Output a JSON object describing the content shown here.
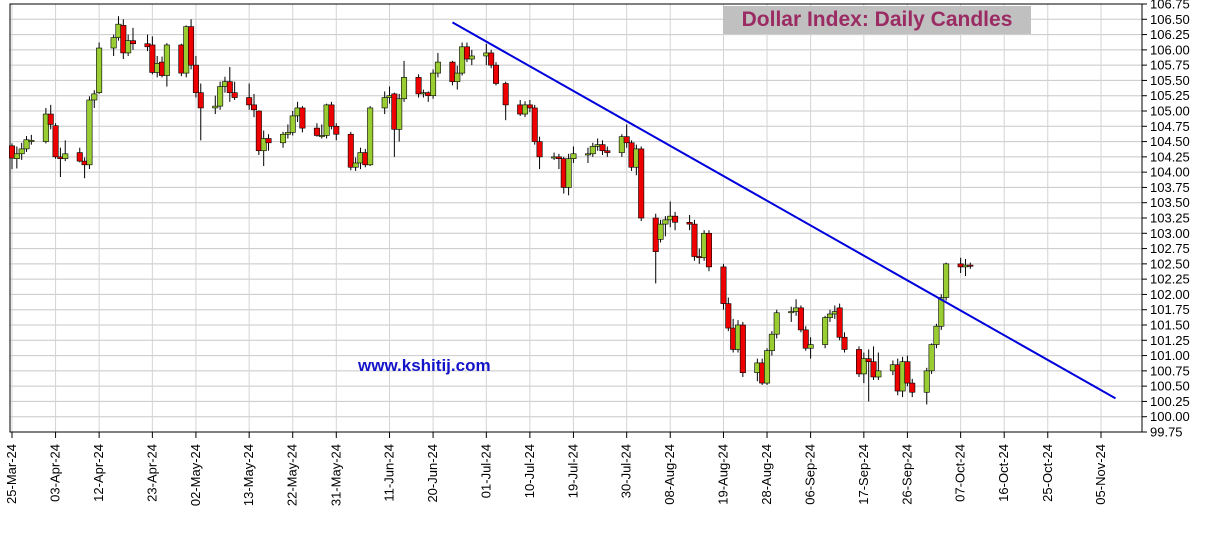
{
  "chart_data": {
    "type": "candlestick",
    "title": "Dollar Index: Daily Candles",
    "watermark": "www.kshitij.com",
    "xlabel": "",
    "ylabel": "",
    "ylim": [
      99.75,
      106.75
    ],
    "y_ticks": [
      "106.75",
      "106.50",
      "106.25",
      "106.00",
      "105.75",
      "105.50",
      "105.25",
      "105.00",
      "104.75",
      "104.50",
      "104.25",
      "104.00",
      "103.75",
      "103.50",
      "103.25",
      "103.00",
      "102.75",
      "102.50",
      "102.25",
      "102.00",
      "101.75",
      "101.50",
      "101.25",
      "101.00",
      "100.75",
      "100.50",
      "100.25",
      "100.00",
      "99.75"
    ],
    "x_ticks": [
      "25-Mar-24",
      "03-Apr-24",
      "12-Apr-24",
      "23-Apr-24",
      "02-May-24",
      "13-May-24",
      "22-May-24",
      "31-May-24",
      "11-Jun-24",
      "20-Jun-24",
      "01-Jul-24",
      "10-Jul-24",
      "19-Jul-24",
      "30-Jul-24",
      "08-Aug-24",
      "19-Aug-24",
      "28-Aug-24",
      "06-Sep-24",
      "17-Sep-24",
      "26-Sep-24",
      "07-Oct-24",
      "16-Oct-24",
      "25-Oct-24",
      "05-Nov-24"
    ],
    "up_color": "#9acd32",
    "down_color": "#ee0000",
    "trendline_color": "#0000dd",
    "trendline": {
      "start": [
        "2024-06-24",
        106.45
      ],
      "end": [
        "2024-11-08",
        100.3
      ]
    },
    "grid": true,
    "candles": [
      {
        "date": "2024-03-25",
        "o": 104.43,
        "h": 104.47,
        "l": 104.05,
        "c": 104.23
      },
      {
        "date": "2024-03-26",
        "o": 104.22,
        "h": 104.42,
        "l": 104.06,
        "c": 104.3
      },
      {
        "date": "2024-03-27",
        "o": 104.3,
        "h": 104.48,
        "l": 104.2,
        "c": 104.38
      },
      {
        "date": "2024-03-28",
        "o": 104.38,
        "h": 104.59,
        "l": 104.33,
        "c": 104.53
      },
      {
        "date": "2024-03-29",
        "o": 104.5,
        "h": 104.61,
        "l": 104.45,
        "c": 104.52
      },
      {
        "date": "2024-04-01",
        "o": 104.5,
        "h": 105.05,
        "l": 104.47,
        "c": 104.95
      },
      {
        "date": "2024-04-02",
        "o": 104.95,
        "h": 105.1,
        "l": 104.7,
        "c": 104.78
      },
      {
        "date": "2024-04-03",
        "o": 104.76,
        "h": 104.8,
        "l": 104.22,
        "c": 104.25
      },
      {
        "date": "2024-04-04",
        "o": 104.25,
        "h": 104.4,
        "l": 103.92,
        "c": 104.22
      },
      {
        "date": "2024-04-05",
        "o": 104.22,
        "h": 104.52,
        "l": 104.18,
        "c": 104.3
      },
      {
        "date": "2024-04-08",
        "o": 104.32,
        "h": 104.4,
        "l": 104.16,
        "c": 104.18
      },
      {
        "date": "2024-04-09",
        "o": 104.18,
        "h": 104.24,
        "l": 103.9,
        "c": 104.12
      },
      {
        "date": "2024-04-10",
        "o": 104.12,
        "h": 105.24,
        "l": 104.05,
        "c": 105.18
      },
      {
        "date": "2024-04-11",
        "o": 105.18,
        "h": 105.34,
        "l": 105.05,
        "c": 105.28
      },
      {
        "date": "2024-04-12",
        "o": 105.3,
        "h": 106.12,
        "l": 105.28,
        "c": 106.03
      },
      {
        "date": "2024-04-15",
        "o": 106.03,
        "h": 106.25,
        "l": 105.9,
        "c": 106.2
      },
      {
        "date": "2024-04-16",
        "o": 106.2,
        "h": 106.55,
        "l": 106.15,
        "c": 106.42
      },
      {
        "date": "2024-04-17",
        "o": 106.4,
        "h": 106.5,
        "l": 105.85,
        "c": 105.95
      },
      {
        "date": "2024-04-18",
        "o": 105.95,
        "h": 106.25,
        "l": 105.9,
        "c": 106.15
      },
      {
        "date": "2024-04-19",
        "o": 106.15,
        "h": 106.36,
        "l": 106.0,
        "c": 106.1
      },
      {
        "date": "2024-04-22",
        "o": 106.1,
        "h": 106.25,
        "l": 105.98,
        "c": 106.05
      },
      {
        "date": "2024-04-23",
        "o": 106.08,
        "h": 106.22,
        "l": 105.6,
        "c": 105.63
      },
      {
        "date": "2024-04-24",
        "o": 105.63,
        "h": 105.9,
        "l": 105.55,
        "c": 105.78
      },
      {
        "date": "2024-04-25",
        "o": 105.8,
        "h": 105.89,
        "l": 105.55,
        "c": 105.58
      },
      {
        "date": "2024-04-26",
        "o": 105.58,
        "h": 106.11,
        "l": 105.4,
        "c": 106.08
      },
      {
        "date": "2024-04-29",
        "o": 106.08,
        "h": 106.1,
        "l": 105.57,
        "c": 105.62
      },
      {
        "date": "2024-04-30",
        "o": 105.62,
        "h": 106.4,
        "l": 105.55,
        "c": 106.38
      },
      {
        "date": "2024-05-01",
        "o": 106.38,
        "h": 106.5,
        "l": 105.68,
        "c": 105.75
      },
      {
        "date": "2024-05-02",
        "o": 105.75,
        "h": 105.9,
        "l": 105.22,
        "c": 105.3
      },
      {
        "date": "2024-05-03",
        "o": 105.3,
        "h": 105.45,
        "l": 104.52,
        "c": 105.05
      },
      {
        "date": "2024-05-06",
        "o": 105.05,
        "h": 105.25,
        "l": 104.95,
        "c": 105.08
      },
      {
        "date": "2024-05-07",
        "o": 105.08,
        "h": 105.48,
        "l": 105.02,
        "c": 105.4
      },
      {
        "date": "2024-05-08",
        "o": 105.4,
        "h": 105.56,
        "l": 105.3,
        "c": 105.48
      },
      {
        "date": "2024-05-09",
        "o": 105.48,
        "h": 105.72,
        "l": 105.15,
        "c": 105.3
      },
      {
        "date": "2024-05-10",
        "o": 105.3,
        "h": 105.48,
        "l": 105.18,
        "c": 105.22
      },
      {
        "date": "2024-05-13",
        "o": 105.22,
        "h": 105.45,
        "l": 105.02,
        "c": 105.1
      },
      {
        "date": "2024-05-14",
        "o": 105.1,
        "h": 105.28,
        "l": 104.9,
        "c": 105.02
      },
      {
        "date": "2024-05-15",
        "o": 105.0,
        "h": 105.01,
        "l": 104.28,
        "c": 104.35
      },
      {
        "date": "2024-05-16",
        "o": 104.35,
        "h": 104.68,
        "l": 104.1,
        "c": 104.55
      },
      {
        "date": "2024-05-17",
        "o": 104.55,
        "h": 104.62,
        "l": 104.35,
        "c": 104.48
      },
      {
        "date": "2024-05-20",
        "o": 104.48,
        "h": 104.66,
        "l": 104.4,
        "c": 104.62
      },
      {
        "date": "2024-05-21",
        "o": 104.62,
        "h": 104.78,
        "l": 104.55,
        "c": 104.65
      },
      {
        "date": "2024-05-22",
        "o": 104.65,
        "h": 105.0,
        "l": 104.6,
        "c": 104.92
      },
      {
        "date": "2024-05-23",
        "o": 104.92,
        "h": 105.15,
        "l": 104.82,
        "c": 105.05
      },
      {
        "date": "2024-05-24",
        "o": 105.05,
        "h": 105.08,
        "l": 104.65,
        "c": 104.72
      },
      {
        "date": "2024-05-27",
        "o": 104.72,
        "h": 104.8,
        "l": 104.58,
        "c": 104.6
      },
      {
        "date": "2024-05-28",
        "o": 104.6,
        "h": 104.78,
        "l": 104.55,
        "c": 104.6
      },
      {
        "date": "2024-05-29",
        "o": 104.6,
        "h": 105.12,
        "l": 104.55,
        "c": 105.1
      },
      {
        "date": "2024-05-30",
        "o": 105.1,
        "h": 105.15,
        "l": 104.7,
        "c": 104.75
      },
      {
        "date": "2024-05-31",
        "o": 104.75,
        "h": 104.8,
        "l": 104.52,
        "c": 104.62
      },
      {
        "date": "2024-06-03",
        "o": 104.62,
        "h": 104.66,
        "l": 104.03,
        "c": 104.08
      },
      {
        "date": "2024-06-04",
        "o": 104.08,
        "h": 104.24,
        "l": 104.02,
        "c": 104.15
      },
      {
        "date": "2024-06-05",
        "o": 104.15,
        "h": 104.4,
        "l": 104.05,
        "c": 104.32
      },
      {
        "date": "2024-06-06",
        "o": 104.32,
        "h": 104.38,
        "l": 104.08,
        "c": 104.12
      },
      {
        "date": "2024-06-07",
        "o": 104.12,
        "h": 105.08,
        "l": 104.1,
        "c": 105.05
      },
      {
        "date": "2024-06-10",
        "o": 105.05,
        "h": 105.32,
        "l": 104.95,
        "c": 105.22
      },
      {
        "date": "2024-06-11",
        "o": 105.22,
        "h": 105.4,
        "l": 105.12,
        "c": 105.25
      },
      {
        "date": "2024-06-12",
        "o": 105.28,
        "h": 105.3,
        "l": 104.25,
        "c": 104.7
      },
      {
        "date": "2024-06-13",
        "o": 104.7,
        "h": 105.28,
        "l": 104.5,
        "c": 105.2
      },
      {
        "date": "2024-06-14",
        "o": 105.2,
        "h": 105.82,
        "l": 105.15,
        "c": 105.55
      },
      {
        "date": "2024-06-17",
        "o": 105.55,
        "h": 105.6,
        "l": 105.22,
        "c": 105.28
      },
      {
        "date": "2024-06-18",
        "o": 105.28,
        "h": 105.35,
        "l": 105.22,
        "c": 105.3
      },
      {
        "date": "2024-06-19",
        "o": 105.3,
        "h": 105.32,
        "l": 105.15,
        "c": 105.25
      },
      {
        "date": "2024-06-20",
        "o": 105.25,
        "h": 105.68,
        "l": 105.2,
        "c": 105.62
      },
      {
        "date": "2024-06-21",
        "o": 105.62,
        "h": 105.95,
        "l": 105.55,
        "c": 105.8
      },
      {
        "date": "2024-06-24",
        "o": 105.8,
        "h": 105.82,
        "l": 105.42,
        "c": 105.48
      },
      {
        "date": "2024-06-25",
        "o": 105.48,
        "h": 105.74,
        "l": 105.35,
        "c": 105.62
      },
      {
        "date": "2024-06-26",
        "o": 105.62,
        "h": 106.12,
        "l": 105.58,
        "c": 106.05
      },
      {
        "date": "2024-06-27",
        "o": 106.05,
        "h": 106.12,
        "l": 105.8,
        "c": 105.85
      },
      {
        "date": "2024-06-28",
        "o": 105.85,
        "h": 106.0,
        "l": 105.75,
        "c": 105.9
      },
      {
        "date": "2024-07-01",
        "o": 105.9,
        "h": 106.1,
        "l": 105.75,
        "c": 105.95
      },
      {
        "date": "2024-07-02",
        "o": 105.95,
        "h": 106.0,
        "l": 105.7,
        "c": 105.75
      },
      {
        "date": "2024-07-03",
        "o": 105.75,
        "h": 105.8,
        "l": 105.42,
        "c": 105.45
      },
      {
        "date": "2024-07-05",
        "o": 105.45,
        "h": 105.48,
        "l": 104.85,
        "c": 105.1
      },
      {
        "date": "2024-07-08",
        "o": 105.1,
        "h": 105.18,
        "l": 104.92,
        "c": 104.95
      },
      {
        "date": "2024-07-09",
        "o": 104.95,
        "h": 105.16,
        "l": 104.9,
        "c": 105.1
      },
      {
        "date": "2024-07-10",
        "o": 105.1,
        "h": 105.18,
        "l": 104.98,
        "c": 105.05
      },
      {
        "date": "2024-07-11",
        "o": 105.05,
        "h": 105.1,
        "l": 104.45,
        "c": 104.5
      },
      {
        "date": "2024-07-12",
        "o": 104.5,
        "h": 104.58,
        "l": 104.05,
        "c": 104.25
      },
      {
        "date": "2024-07-15",
        "o": 104.25,
        "h": 104.32,
        "l": 104.2,
        "c": 104.25
      },
      {
        "date": "2024-07-16",
        "o": 104.25,
        "h": 104.3,
        "l": 104.05,
        "c": 104.22
      },
      {
        "date": "2024-07-17",
        "o": 104.22,
        "h": 104.25,
        "l": 103.65,
        "c": 103.75
      },
      {
        "date": "2024-07-18",
        "o": 103.75,
        "h": 104.3,
        "l": 103.62,
        "c": 104.22
      },
      {
        "date": "2024-07-19",
        "o": 104.22,
        "h": 104.42,
        "l": 104.15,
        "c": 104.3
      },
      {
        "date": "2024-07-22",
        "o": 104.3,
        "h": 104.4,
        "l": 104.15,
        "c": 104.3
      },
      {
        "date": "2024-07-23",
        "o": 104.3,
        "h": 104.48,
        "l": 104.25,
        "c": 104.42
      },
      {
        "date": "2024-07-24",
        "o": 104.42,
        "h": 104.55,
        "l": 104.35,
        "c": 104.45
      },
      {
        "date": "2024-07-25",
        "o": 104.45,
        "h": 104.52,
        "l": 104.28,
        "c": 104.35
      },
      {
        "date": "2024-07-26",
        "o": 104.35,
        "h": 104.42,
        "l": 104.25,
        "c": 104.32
      },
      {
        "date": "2024-07-29",
        "o": 104.32,
        "h": 104.62,
        "l": 104.25,
        "c": 104.58
      },
      {
        "date": "2024-07-30",
        "o": 104.58,
        "h": 104.78,
        "l": 104.4,
        "c": 104.48
      },
      {
        "date": "2024-07-31",
        "o": 104.48,
        "h": 104.52,
        "l": 104.02,
        "c": 104.08
      },
      {
        "date": "2024-08-01",
        "o": 104.08,
        "h": 104.45,
        "l": 103.95,
        "c": 104.38
      },
      {
        "date": "2024-08-02",
        "o": 104.38,
        "h": 104.42,
        "l": 103.2,
        "c": 103.25
      },
      {
        "date": "2024-08-05",
        "o": 103.25,
        "h": 103.32,
        "l": 102.18,
        "c": 102.7
      },
      {
        "date": "2024-08-06",
        "o": 102.9,
        "h": 103.22,
        "l": 102.85,
        "c": 103.15
      },
      {
        "date": "2024-08-07",
        "o": 103.15,
        "h": 103.28,
        "l": 102.95,
        "c": 103.22
      },
      {
        "date": "2024-08-08",
        "o": 103.22,
        "h": 103.52,
        "l": 103.1,
        "c": 103.28
      },
      {
        "date": "2024-08-09",
        "o": 103.28,
        "h": 103.35,
        "l": 103.05,
        "c": 103.18
      },
      {
        "date": "2024-08-12",
        "o": 103.18,
        "h": 103.3,
        "l": 103.05,
        "c": 103.15
      },
      {
        "date": "2024-08-13",
        "o": 103.15,
        "h": 103.22,
        "l": 102.55,
        "c": 102.62
      },
      {
        "date": "2024-08-14",
        "o": 102.62,
        "h": 102.75,
        "l": 102.5,
        "c": 102.6
      },
      {
        "date": "2024-08-15",
        "o": 102.6,
        "h": 103.05,
        "l": 102.55,
        "c": 103.0
      },
      {
        "date": "2024-08-16",
        "o": 103.0,
        "h": 103.05,
        "l": 102.38,
        "c": 102.45
      },
      {
        "date": "2024-08-19",
        "o": 102.45,
        "h": 102.5,
        "l": 101.75,
        "c": 101.85
      },
      {
        "date": "2024-08-20",
        "o": 101.85,
        "h": 101.95,
        "l": 101.4,
        "c": 101.45
      },
      {
        "date": "2024-08-21",
        "o": 101.45,
        "h": 101.6,
        "l": 101.05,
        "c": 101.1
      },
      {
        "date": "2024-08-22",
        "o": 101.1,
        "h": 101.58,
        "l": 101.05,
        "c": 101.5
      },
      {
        "date": "2024-08-23",
        "o": 101.5,
        "h": 101.55,
        "l": 100.65,
        "c": 100.72
      },
      {
        "date": "2024-08-26",
        "o": 100.72,
        "h": 100.95,
        "l": 100.58,
        "c": 100.88
      },
      {
        "date": "2024-08-27",
        "o": 100.88,
        "h": 100.95,
        "l": 100.52,
        "c": 100.55
      },
      {
        "date": "2024-08-28",
        "o": 100.55,
        "h": 101.12,
        "l": 100.52,
        "c": 101.08
      },
      {
        "date": "2024-08-29",
        "o": 101.08,
        "h": 101.4,
        "l": 101.0,
        "c": 101.35
      },
      {
        "date": "2024-08-30",
        "o": 101.35,
        "h": 101.75,
        "l": 101.28,
        "c": 101.7
      },
      {
        "date": "2024-09-02",
        "o": 101.7,
        "h": 101.8,
        "l": 101.55,
        "c": 101.72
      },
      {
        "date": "2024-09-03",
        "o": 101.72,
        "h": 101.92,
        "l": 101.65,
        "c": 101.78
      },
      {
        "date": "2024-09-04",
        "o": 101.78,
        "h": 101.82,
        "l": 101.38,
        "c": 101.42
      },
      {
        "date": "2024-09-05",
        "o": 101.42,
        "h": 101.48,
        "l": 101.08,
        "c": 101.12
      },
      {
        "date": "2024-09-06",
        "o": 101.12,
        "h": 101.3,
        "l": 100.95,
        "c": 101.18
      },
      {
        "date": "2024-09-09",
        "o": 101.18,
        "h": 101.65,
        "l": 101.12,
        "c": 101.62
      },
      {
        "date": "2024-09-10",
        "o": 101.62,
        "h": 101.75,
        "l": 101.55,
        "c": 101.68
      },
      {
        "date": "2024-09-11",
        "o": 101.68,
        "h": 101.82,
        "l": 101.6,
        "c": 101.72
      },
      {
        "date": "2024-09-12",
        "o": 101.78,
        "h": 101.85,
        "l": 101.25,
        "c": 101.3
      },
      {
        "date": "2024-09-13",
        "o": 101.3,
        "h": 101.38,
        "l": 101.05,
        "c": 101.1
      },
      {
        "date": "2024-09-16",
        "o": 101.1,
        "h": 101.15,
        "l": 100.65,
        "c": 100.7
      },
      {
        "date": "2024-09-17",
        "o": 100.7,
        "h": 101.05,
        "l": 100.55,
        "c": 100.95
      },
      {
        "date": "2024-09-18",
        "o": 100.95,
        "h": 101.1,
        "l": 100.25,
        "c": 100.9
      },
      {
        "date": "2024-09-19",
        "o": 100.9,
        "h": 101.15,
        "l": 100.6,
        "c": 100.65
      },
      {
        "date": "2024-09-20",
        "o": 100.65,
        "h": 101.05,
        "l": 100.6,
        "c": 100.75
      },
      {
        "date": "2024-09-23",
        "o": 100.75,
        "h": 100.92,
        "l": 100.68,
        "c": 100.85
      },
      {
        "date": "2024-09-24",
        "o": 100.85,
        "h": 100.95,
        "l": 100.35,
        "c": 100.42
      },
      {
        "date": "2024-09-25",
        "o": 100.42,
        "h": 100.98,
        "l": 100.32,
        "c": 100.9
      },
      {
        "date": "2024-09-26",
        "o": 100.9,
        "h": 101.0,
        "l": 100.5,
        "c": 100.55
      },
      {
        "date": "2024-09-27",
        "o": 100.55,
        "h": 100.62,
        "l": 100.32,
        "c": 100.4
      },
      {
        "date": "2024-09-30",
        "o": 100.4,
        "h": 100.8,
        "l": 100.2,
        "c": 100.75
      },
      {
        "date": "2024-10-01",
        "o": 100.75,
        "h": 101.2,
        "l": 100.7,
        "c": 101.18
      },
      {
        "date": "2024-10-02",
        "o": 101.18,
        "h": 101.52,
        "l": 101.12,
        "c": 101.48
      },
      {
        "date": "2024-10-03",
        "o": 101.48,
        "h": 102.0,
        "l": 101.42,
        "c": 101.95
      },
      {
        "date": "2024-10-04",
        "o": 101.95,
        "h": 102.52,
        "l": 101.9,
        "c": 102.5
      },
      {
        "date": "2024-10-07",
        "o": 102.5,
        "h": 102.6,
        "l": 102.35,
        "c": 102.45
      },
      {
        "date": "2024-10-08",
        "o": 102.45,
        "h": 102.58,
        "l": 102.3,
        "c": 102.48
      },
      {
        "date": "2024-10-09",
        "o": 102.48,
        "h": 102.52,
        "l": 102.42,
        "c": 102.47
      }
    ]
  }
}
